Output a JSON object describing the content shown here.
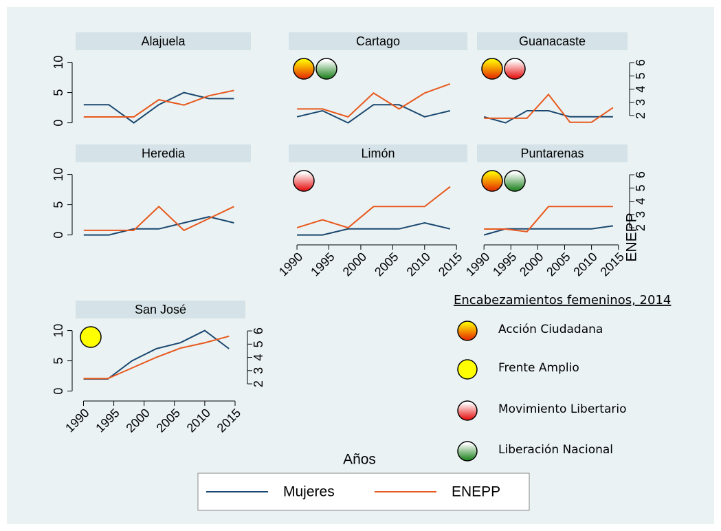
{
  "chart_data": [
    {
      "type": "line",
      "title": "Alajuela",
      "x": [
        1990,
        1994,
        1998,
        2002,
        2006,
        2010,
        2014
      ],
      "xlim": [
        1988.7,
        2016.7
      ],
      "ylim": [
        -1.3,
        12
      ],
      "yticks": [
        0,
        5,
        10
      ],
      "y2lim": [
        0.86,
        6.94
      ],
      "series": [
        {
          "values": [
            3,
            3,
            0,
            3,
            5,
            4,
            4
          ]
        },
        {
          "values": [
            1.9,
            1.9,
            1.9,
            3.2,
            2.8,
            3.5,
            3.9
          ],
          "axis": "y2"
        }
      ]
    },
    {
      "type": "line",
      "title": "Cartago",
      "x": [
        1990,
        1994,
        1998,
        2002,
        2006,
        2010,
        2014
      ],
      "xlim": [
        1988.7,
        2016.7
      ],
      "ylim": [
        -1.3,
        12
      ],
      "y2lim": [
        0.86,
        6.94
      ],
      "series": [
        {
          "values": [
            1,
            2,
            0,
            3,
            3,
            1,
            2
          ]
        },
        {
          "values": [
            2.5,
            2.5,
            1.9,
            3.7,
            2.5,
            3.7,
            4.4
          ],
          "axis": "y2"
        }
      ],
      "markers": [
        "Acción Ciudadana",
        "Liberación Nacional"
      ]
    },
    {
      "type": "line",
      "title": "Guanacaste",
      "x": [
        1990,
        1994,
        1998,
        2002,
        2006,
        2010,
        2014
      ],
      "xlim": [
        1988.7,
        2016.7
      ],
      "ylim": [
        -1.3,
        12
      ],
      "y2lim": [
        0.86,
        6.94
      ],
      "y2ticks": [
        2,
        3,
        4,
        5,
        6
      ],
      "series": [
        {
          "values": [
            1,
            0,
            2,
            2,
            1,
            1,
            1
          ]
        },
        {
          "values": [
            1.8,
            1.8,
            1.8,
            3.6,
            1.5,
            1.5,
            2.6
          ],
          "axis": "y2"
        }
      ],
      "markers": [
        "Acción Ciudadana",
        "Movimiento Libertario"
      ]
    },
    {
      "type": "line",
      "title": "Heredia",
      "x": [
        1990,
        1994,
        1998,
        2002,
        2006,
        2010,
        2014
      ],
      "xlim": [
        1988.7,
        2016.7
      ],
      "ylim": [
        -1.3,
        12
      ],
      "yticks": [
        0,
        5,
        10
      ],
      "y2lim": [
        0.86,
        6.94
      ],
      "series": [
        {
          "values": [
            0,
            0,
            1,
            1,
            2,
            3,
            2
          ]
        },
        {
          "values": [
            1.8,
            1.8,
            1.8,
            3.6,
            1.8,
            2.7,
            3.6
          ],
          "axis": "y2"
        }
      ]
    },
    {
      "type": "line",
      "title": "Limón",
      "x": [
        1990,
        1994,
        1998,
        2002,
        2006,
        2010,
        2014
      ],
      "xlim": [
        1988.7,
        2016.7
      ],
      "xticks": [
        1990,
        1995,
        2000,
        2005,
        2010,
        2015
      ],
      "ylim": [
        -1.3,
        12
      ],
      "y2lim": [
        0.86,
        6.94
      ],
      "series": [
        {
          "values": [
            0,
            0,
            1,
            1,
            1,
            2,
            1
          ]
        },
        {
          "values": [
            2.0,
            2.6,
            2.0,
            3.6,
            3.6,
            3.6,
            5.1
          ],
          "axis": "y2"
        }
      ],
      "markers": [
        "Movimiento Libertario"
      ]
    },
    {
      "type": "line",
      "title": "Puntarenas",
      "x": [
        1990,
        1994,
        1998,
        2002,
        2006,
        2010,
        2014
      ],
      "xlim": [
        1988.7,
        2016.7
      ],
      "xticks": [
        1990,
        1995,
        2000,
        2005,
        2010,
        2015
      ],
      "ylim": [
        -1.3,
        12
      ],
      "y2lim": [
        0.86,
        6.94
      ],
      "y2ticks": [
        2,
        3,
        4,
        5,
        6
      ],
      "series": [
        {
          "values": [
            0,
            1,
            1,
            1,
            1,
            1,
            1.5
          ]
        },
        {
          "values": [
            1.9,
            1.9,
            1.7,
            3.6,
            3.6,
            3.6,
            3.6
          ],
          "axis": "y2"
        }
      ],
      "markers": [
        "Acción Ciudadana",
        "Liberación Nacional"
      ]
    },
    {
      "type": "line",
      "title": "San José",
      "x": [
        1990,
        1994,
        1998,
        2002,
        2006,
        2010,
        2014
      ],
      "xlim": [
        1988.7,
        2016.7
      ],
      "xticks": [
        1990,
        1995,
        2000,
        2005,
        2010,
        2015
      ],
      "ylim": [
        -1.3,
        12
      ],
      "yticks": [
        0,
        5,
        10
      ],
      "y2lim": [
        0.86,
        6.94
      ],
      "y2ticks": [
        2,
        3,
        4,
        5,
        6
      ],
      "series": [
        {
          "values": [
            2,
            2,
            5,
            7,
            8,
            10,
            7
          ]
        },
        {
          "values": [
            2.4,
            2.4,
            3.2,
            4.0,
            4.7,
            5.1,
            5.6
          ],
          "axis": "y2"
        }
      ],
      "markers": [
        "Frente Amplio"
      ]
    }
  ],
  "series_legend": [
    {
      "name": "Mujeres",
      "color": "#1a476f"
    },
    {
      "name": "ENEPP",
      "color": "#e8581c"
    }
  ],
  "x_label": "Años",
  "y2_label": "ENEPP",
  "party_legend": {
    "title": "Encabezamientos femeninos, 2014",
    "items": [
      {
        "name": "Acción Ciudadana",
        "colors": [
          "#fff000",
          "#e83a00"
        ]
      },
      {
        "name": "Frente Amplio",
        "colors": [
          "#ffff00",
          "#ffff00"
        ]
      },
      {
        "name": "Movimiento Libertario",
        "colors": [
          "#ffffff",
          "#e82020"
        ]
      },
      {
        "name": "Liberación Nacional",
        "colors": [
          "#ffffff",
          "#2e8b2e"
        ]
      }
    ]
  }
}
